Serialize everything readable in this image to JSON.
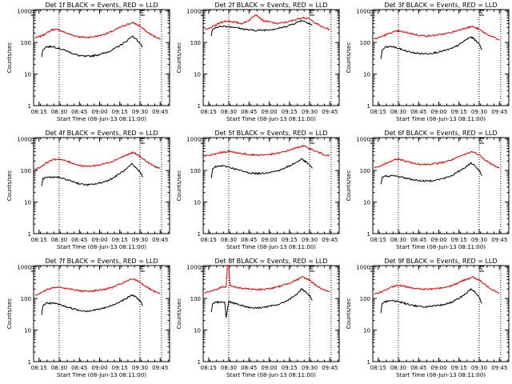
{
  "figure": {
    "xlabel": "Start Time (08-Jun-13 08:11:00)",
    "ylabel": "Counts/sec",
    "xticks": [
      "08:15",
      "08:30",
      "08:45",
      "09:00",
      "09:15",
      "09:30",
      "09:45"
    ],
    "yticks": [
      "1",
      "10",
      "100",
      "1000"
    ],
    "colors": {
      "events": "#000000",
      "lld": "#e00000",
      "axis": "#000000"
    }
  },
  "chart_data": [
    {
      "type": "line",
      "title": "Det 1f BLACK = Events, RED = LLD",
      "xlim": [
        "08:11",
        "09:52"
      ],
      "ylim": [
        1,
        1100
      ],
      "yscale": "log",
      "markers": [
        "08:30",
        "09:30",
        "09:46"
      ],
      "series": [
        {
          "name": "Events",
          "color": "#000000",
          "x": [
            "08:17",
            "08:18",
            "08:20",
            "08:25",
            "08:30",
            "08:35",
            "08:40",
            "08:45",
            "08:50",
            "08:55",
            "09:00",
            "09:05",
            "09:10",
            "09:15",
            "09:20",
            "09:24",
            "09:27",
            "09:30",
            "09:32"
          ],
          "values": [
            35,
            60,
            72,
            75,
            65,
            55,
            45,
            38,
            36,
            38,
            42,
            48,
            60,
            80,
            110,
            160,
            130,
            95,
            70
          ]
        },
        {
          "name": "LLD",
          "color": "#e00000",
          "x": [
            "08:12",
            "08:15",
            "08:20",
            "08:25",
            "08:30",
            "08:35",
            "08:40",
            "08:45",
            "08:50",
            "08:55",
            "09:00",
            "09:05",
            "09:10",
            "09:15",
            "09:20",
            "09:25",
            "09:30",
            "09:35",
            "09:40",
            "09:45"
          ],
          "values": [
            140,
            150,
            190,
            260,
            250,
            200,
            170,
            150,
            145,
            150,
            165,
            190,
            230,
            300,
            370,
            420,
            330,
            220,
            160,
            130
          ]
        }
      ]
    },
    {
      "type": "line",
      "title": "Det 2f BLACK = Events, RED = LLD",
      "xlim": [
        "08:11",
        "09:52"
      ],
      "ylim": [
        1,
        1100
      ],
      "yscale": "log",
      "markers": [
        "08:30",
        "09:30",
        "09:46"
      ],
      "series": [
        {
          "name": "Events",
          "color": "#000000",
          "x": [
            "08:17",
            "08:18",
            "08:20",
            "08:25",
            "08:30",
            "08:35",
            "08:40",
            "08:45",
            "08:50",
            "08:55",
            "09:00",
            "09:05",
            "09:10",
            "09:15",
            "09:20",
            "09:24",
            "09:27",
            "09:30",
            "09:32"
          ],
          "values": [
            170,
            250,
            300,
            330,
            320,
            300,
            270,
            250,
            240,
            245,
            255,
            270,
            300,
            350,
            420,
            500,
            460,
            400,
            340
          ]
        },
        {
          "name": "LLD",
          "color": "#e00000",
          "x": [
            "08:12",
            "08:15",
            "08:20",
            "08:25",
            "08:30",
            "08:35",
            "08:40",
            "08:45",
            "08:50",
            "08:53",
            "08:56",
            "09:00",
            "09:05",
            "09:10",
            "09:15",
            "09:20",
            "09:25",
            "09:30",
            "09:35",
            "09:40",
            "09:45"
          ],
          "values": [
            250,
            270,
            350,
            450,
            480,
            430,
            400,
            500,
            800,
            600,
            480,
            450,
            400,
            420,
            460,
            540,
            620,
            550,
            400,
            300,
            260
          ]
        }
      ]
    },
    {
      "type": "line",
      "title": "Det 3f BLACK = Events, RED = LLD",
      "xlim": [
        "08:11",
        "09:52"
      ],
      "ylim": [
        1,
        1100
      ],
      "yscale": "log",
      "markers": [
        "08:30",
        "09:30",
        "09:46"
      ],
      "series": [
        {
          "name": "Events",
          "color": "#000000",
          "x": [
            "08:17",
            "08:18",
            "08:20",
            "08:25",
            "08:30",
            "08:35",
            "08:40",
            "08:45",
            "08:50",
            "08:55",
            "09:00",
            "09:05",
            "09:10",
            "09:15",
            "09:20",
            "09:24",
            "09:27",
            "09:30",
            "09:32"
          ],
          "values": [
            30,
            55,
            70,
            75,
            65,
            55,
            48,
            45,
            44,
            46,
            50,
            56,
            65,
            85,
            120,
            150,
            120,
            90,
            60
          ]
        },
        {
          "name": "LLD",
          "color": "#e00000",
          "x": [
            "08:12",
            "08:15",
            "08:20",
            "08:25",
            "08:30",
            "08:35",
            "08:40",
            "08:45",
            "08:50",
            "08:55",
            "09:00",
            "09:05",
            "09:10",
            "09:15",
            "09:20",
            "09:25",
            "09:30",
            "09:35",
            "09:40",
            "09:45"
          ],
          "values": [
            130,
            140,
            170,
            210,
            230,
            210,
            190,
            170,
            160,
            165,
            175,
            190,
            210,
            250,
            290,
            320,
            260,
            190,
            150,
            120
          ]
        }
      ]
    },
    {
      "type": "line",
      "title": "Det 4f BLACK = Events, RED = LLD",
      "xlim": [
        "08:11",
        "09:52"
      ],
      "ylim": [
        1,
        1100
      ],
      "yscale": "log",
      "markers": [
        "08:30",
        "09:30",
        "09:46"
      ],
      "series": [
        {
          "name": "Events",
          "color": "#000000",
          "x": [
            "08:17",
            "08:18",
            "08:20",
            "08:25",
            "08:30",
            "08:35",
            "08:40",
            "08:45",
            "08:50",
            "08:55",
            "09:00",
            "09:05",
            "09:10",
            "09:15",
            "09:20",
            "09:24",
            "09:27",
            "09:30",
            "09:32"
          ],
          "values": [
            30,
            55,
            60,
            62,
            60,
            52,
            45,
            38,
            35,
            36,
            40,
            46,
            58,
            80,
            110,
            160,
            120,
            90,
            65
          ]
        },
        {
          "name": "LLD",
          "color": "#e00000",
          "x": [
            "08:12",
            "08:15",
            "08:20",
            "08:25",
            "08:30",
            "08:35",
            "08:40",
            "08:45",
            "08:50",
            "08:55",
            "09:00",
            "09:05",
            "09:10",
            "09:15",
            "09:20",
            "09:25",
            "09:30",
            "09:35",
            "09:40",
            "09:45"
          ],
          "values": [
            110,
            120,
            170,
            220,
            230,
            200,
            170,
            145,
            135,
            140,
            150,
            170,
            200,
            250,
            310,
            370,
            280,
            190,
            140,
            115
          ]
        }
      ]
    },
    {
      "type": "line",
      "title": "Det 5f BLACK = Events, RED = LLD",
      "xlim": [
        "08:11",
        "09:52"
      ],
      "ylim": [
        1,
        1100
      ],
      "yscale": "log",
      "markers": [
        "08:30",
        "09:30",
        "09:46"
      ],
      "series": [
        {
          "name": "Events",
          "color": "#000000",
          "x": [
            "08:17",
            "08:18",
            "08:20",
            "08:25",
            "08:30",
            "08:35",
            "08:40",
            "08:45",
            "08:50",
            "08:55",
            "09:00",
            "09:05",
            "09:10",
            "09:15",
            "09:20",
            "09:24",
            "09:27",
            "09:30",
            "09:32"
          ],
          "values": [
            55,
            110,
            130,
            140,
            130,
            110,
            95,
            85,
            80,
            82,
            88,
            95,
            110,
            140,
            180,
            230,
            190,
            150,
            120
          ]
        },
        {
          "name": "LLD",
          "color": "#e00000",
          "x": [
            "08:12",
            "08:15",
            "08:20",
            "08:25",
            "08:30",
            "08:35",
            "08:40",
            "08:45",
            "08:50",
            "08:55",
            "09:00",
            "09:05",
            "09:10",
            "09:15",
            "09:20",
            "09:25",
            "09:30",
            "09:35",
            "09:40",
            "09:45"
          ],
          "values": [
            290,
            300,
            330,
            380,
            400,
            370,
            340,
            320,
            310,
            312,
            320,
            340,
            380,
            440,
            520,
            600,
            500,
            400,
            330,
            290
          ]
        }
      ]
    },
    {
      "type": "line",
      "title": "Det 6f BLACK = Events, RED = LLD",
      "xlim": [
        "08:11",
        "09:52"
      ],
      "ylim": [
        1,
        1100
      ],
      "yscale": "log",
      "markers": [
        "08:30",
        "09:30",
        "09:46"
      ],
      "series": [
        {
          "name": "Events",
          "color": "#000000",
          "x": [
            "08:17",
            "08:18",
            "08:20",
            "08:25",
            "08:30",
            "08:35",
            "08:40",
            "08:45",
            "08:50",
            "08:55",
            "09:00",
            "09:05",
            "09:10",
            "09:15",
            "09:20",
            "09:24",
            "09:27",
            "09:30",
            "09:32"
          ],
          "values": [
            35,
            60,
            65,
            68,
            65,
            58,
            52,
            48,
            46,
            48,
            52,
            58,
            70,
            95,
            130,
            175,
            140,
            100,
            70
          ]
        },
        {
          "name": "LLD",
          "color": "#e00000",
          "x": [
            "08:12",
            "08:15",
            "08:20",
            "08:25",
            "08:30",
            "08:35",
            "08:40",
            "08:45",
            "08:50",
            "08:55",
            "09:00",
            "09:05",
            "09:10",
            "09:15",
            "09:20",
            "09:25",
            "09:30",
            "09:35",
            "09:40",
            "09:45"
          ],
          "values": [
            120,
            130,
            160,
            200,
            230,
            200,
            175,
            160,
            155,
            160,
            170,
            190,
            220,
            270,
            330,
            400,
            310,
            210,
            150,
            120
          ]
        }
      ]
    },
    {
      "type": "line",
      "title": "Det 7f BLACK = Events, RED = LLD",
      "xlim": [
        "08:11",
        "09:52"
      ],
      "ylim": [
        1,
        1100
      ],
      "yscale": "log",
      "markers": [
        "08:30",
        "09:30",
        "09:46"
      ],
      "series": [
        {
          "name": "Events",
          "color": "#000000",
          "x": [
            "08:17",
            "08:18",
            "08:20",
            "08:25",
            "08:30",
            "08:35",
            "08:40",
            "08:45",
            "08:50",
            "08:55",
            "09:00",
            "09:05",
            "09:10",
            "09:15",
            "09:20",
            "09:24",
            "09:27",
            "09:30",
            "09:32"
          ],
          "values": [
            30,
            60,
            70,
            72,
            65,
            55,
            48,
            42,
            40,
            42,
            46,
            52,
            62,
            80,
            100,
            130,
            110,
            85,
            60
          ]
        },
        {
          "name": "LLD",
          "color": "#e00000",
          "x": [
            "08:12",
            "08:15",
            "08:20",
            "08:25",
            "08:30",
            "08:35",
            "08:40",
            "08:45",
            "08:50",
            "08:55",
            "09:00",
            "09:05",
            "09:10",
            "09:15",
            "09:20",
            "09:25",
            "09:30",
            "09:35",
            "09:40",
            "09:45"
          ],
          "values": [
            130,
            140,
            180,
            220,
            230,
            210,
            190,
            175,
            170,
            175,
            185,
            200,
            230,
            280,
            350,
            420,
            330,
            230,
            170,
            140
          ]
        }
      ]
    },
    {
      "type": "line",
      "title": "Det 8f BLACK = Events, RED = LLD",
      "xlim": [
        "08:11",
        "09:52"
      ],
      "ylim": [
        1,
        1100
      ],
      "yscale": "log",
      "markers": [
        "08:30",
        "09:30",
        "09:46"
      ],
      "series": [
        {
          "name": "Events",
          "color": "#000000",
          "x": [
            "08:17",
            "08:18",
            "08:20",
            "08:25",
            "08:27",
            "08:28",
            "08:30",
            "08:35",
            "08:40",
            "08:45",
            "08:50",
            "08:55",
            "09:00",
            "09:05",
            "09:10",
            "09:15",
            "09:20",
            "09:24",
            "09:27",
            "09:30",
            "09:32"
          ],
          "values": [
            35,
            65,
            75,
            80,
            75,
            25,
            80,
            70,
            60,
            52,
            50,
            52,
            56,
            62,
            72,
            95,
            130,
            200,
            160,
            120,
            85
          ]
        },
        {
          "name": "LLD",
          "color": "#e00000",
          "x": [
            "08:12",
            "08:15",
            "08:20",
            "08:25",
            "08:28",
            "08:29",
            "08:30",
            "08:31",
            "08:35",
            "08:40",
            "08:45",
            "08:50",
            "08:55",
            "09:00",
            "09:05",
            "09:10",
            "09:15",
            "09:20",
            "09:25",
            "09:30",
            "09:35",
            "09:40",
            "09:45"
          ],
          "values": [
            150,
            160,
            190,
            230,
            240,
            1100,
            1100,
            250,
            230,
            210,
            200,
            190,
            195,
            205,
            225,
            260,
            310,
            380,
            480,
            380,
            260,
            190,
            160
          ]
        }
      ]
    },
    {
      "type": "line",
      "title": "Det 9f BLACK = Events, RED = LLD",
      "xlim": [
        "08:11",
        "09:52"
      ],
      "ylim": [
        1,
        1100
      ],
      "yscale": "log",
      "markers": [
        "08:30",
        "09:30",
        "09:46"
      ],
      "series": [
        {
          "name": "Events",
          "color": "#000000",
          "x": [
            "08:17",
            "08:18",
            "08:20",
            "08:25",
            "08:30",
            "08:35",
            "08:40",
            "08:45",
            "08:50",
            "08:55",
            "09:00",
            "09:05",
            "09:10",
            "09:15",
            "09:20",
            "09:24",
            "09:27",
            "09:30",
            "09:32"
          ],
          "values": [
            35,
            70,
            80,
            85,
            80,
            70,
            62,
            56,
            54,
            56,
            60,
            66,
            78,
            100,
            140,
            200,
            160,
            110,
            70
          ]
        },
        {
          "name": "LLD",
          "color": "#e00000",
          "x": [
            "08:12",
            "08:15",
            "08:20",
            "08:25",
            "08:30",
            "08:35",
            "08:40",
            "08:45",
            "08:50",
            "08:55",
            "09:00",
            "09:05",
            "09:10",
            "09:15",
            "09:20",
            "09:25",
            "09:30",
            "09:35",
            "09:40",
            "09:45"
          ],
          "values": [
            140,
            150,
            180,
            230,
            260,
            240,
            220,
            200,
            195,
            200,
            210,
            230,
            260,
            320,
            400,
            480,
            380,
            260,
            190,
            150
          ]
        }
      ]
    }
  ]
}
